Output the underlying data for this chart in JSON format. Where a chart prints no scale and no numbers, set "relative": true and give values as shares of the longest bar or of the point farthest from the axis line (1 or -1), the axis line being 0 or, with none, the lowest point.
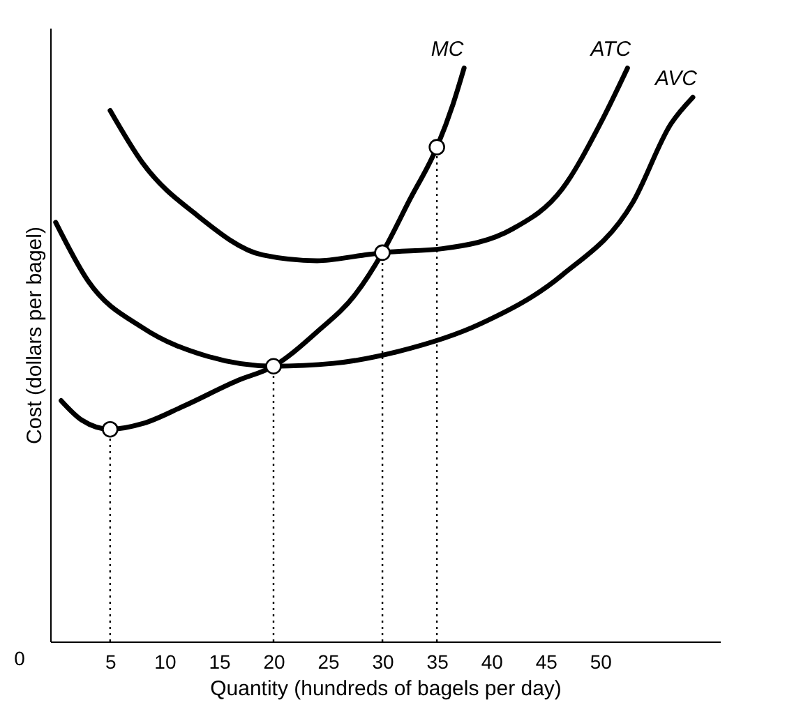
{
  "chart_data": {
    "type": "line",
    "relative": true,
    "xlabel": "Quantity (hundreds of bagels per day)",
    "ylabel": "Cost (dollars per bagel)",
    "xlim": [
      -0.5,
      61
    ],
    "xticks": [
      5,
      10,
      15,
      20,
      25,
      30,
      35,
      40,
      45,
      50
    ],
    "grid": false,
    "line_style": "solid",
    "marker": "none",
    "annotations": [
      "0"
    ],
    "ref_lines": [
      {
        "axis": "x",
        "value": 5,
        "line_style": "dotted"
      },
      {
        "axis": "x",
        "value": 20,
        "line_style": "dotted"
      },
      {
        "axis": "x",
        "value": 30,
        "line_style": "dotted"
      },
      {
        "axis": "x",
        "value": 35,
        "line_style": "dotted"
      }
    ],
    "series": [
      {
        "name": "MC",
        "color": "#000000",
        "x": [
          0.5,
          2.4,
          5,
          8,
          11.7,
          16.7,
          20,
          24,
          27.5,
          30,
          32.5,
          35,
          36.5,
          37.5
        ],
        "values": [
          0.42,
          0.386,
          0.37,
          0.38,
          0.41,
          0.455,
          0.48,
          0.54,
          0.605,
          0.678,
          0.77,
          0.862,
          0.938,
          1.0
        ]
      },
      {
        "name": "ATC",
        "color": "#000000",
        "x": [
          5,
          8,
          13,
          19,
          24,
          28,
          30,
          35.5,
          42,
          46.5,
          50,
          52.5
        ],
        "values": [
          0.926,
          0.834,
          0.743,
          0.674,
          0.664,
          0.673,
          0.678,
          0.685,
          0.72,
          0.789,
          0.903,
          1.0
        ]
      },
      {
        "name": "AVC",
        "color": "#000000",
        "x": [
          0,
          3,
          8,
          14,
          20,
          25.5,
          31.5,
          39,
          46.5,
          53,
          56.5,
          58.5
        ],
        "values": [
          0.731,
          0.628,
          0.547,
          0.497,
          0.48,
          0.485,
          0.506,
          0.554,
          0.639,
          0.766,
          0.903,
          0.949
        ]
      },
      {
        "type": "scatter",
        "color": "#000000",
        "marker": "circle",
        "x": [
          5,
          20,
          30,
          35
        ],
        "values": [
          0.37,
          0.48,
          0.678,
          0.862
        ]
      }
    ]
  }
}
